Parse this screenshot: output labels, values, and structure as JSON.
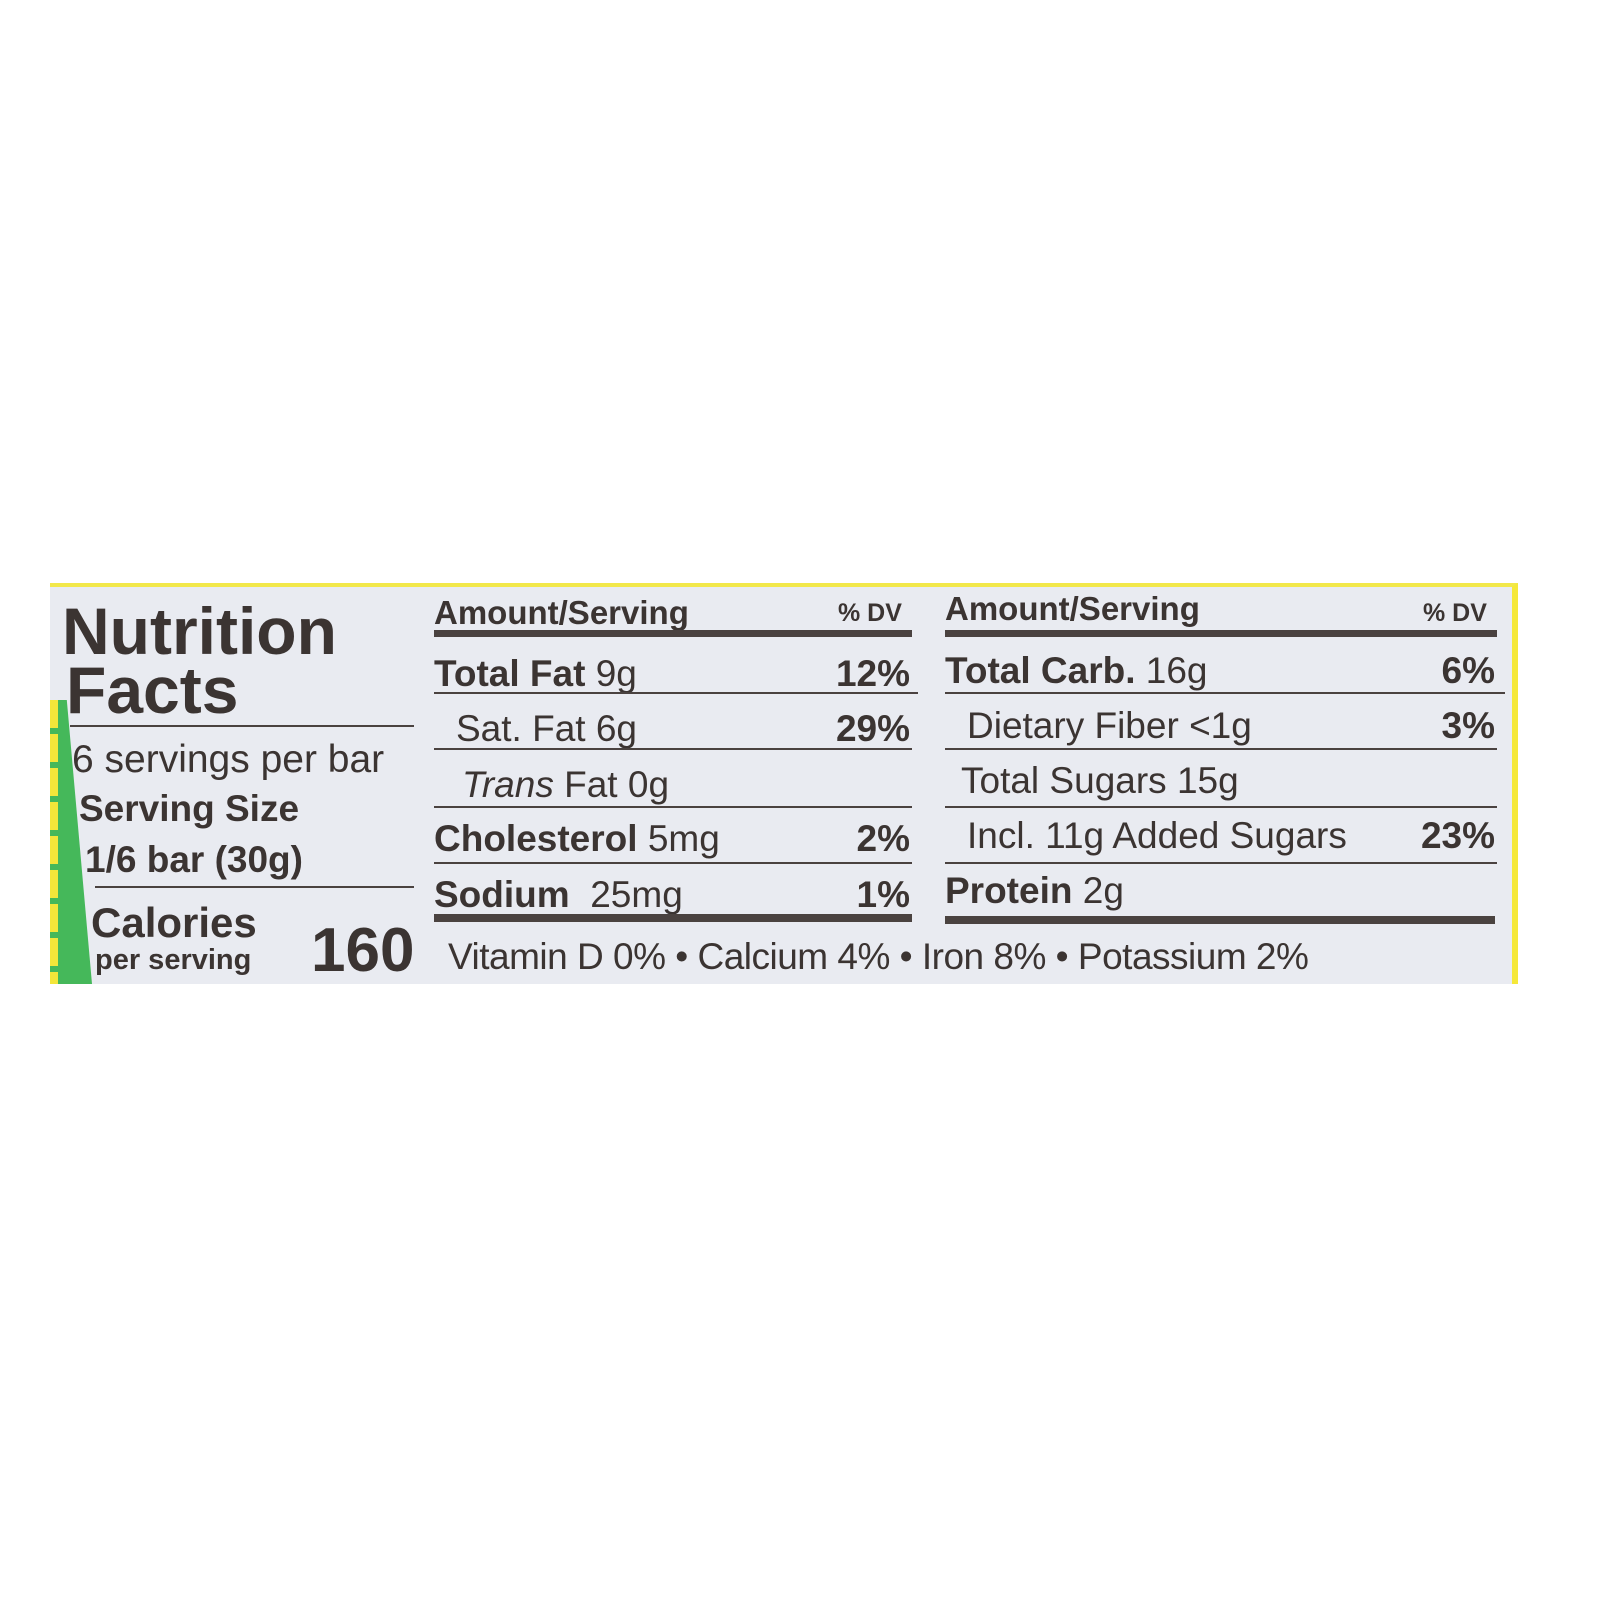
{
  "label": {
    "title_line1": "Nutrition",
    "title_line2": "Facts",
    "servings_per_container": "6 servings per bar",
    "serving_size_label": "Serving Size",
    "serving_size_value": "1/6 bar (30g)",
    "calories_label": "Calories",
    "calories_sub": "per serving",
    "calories_value": "160",
    "left_column": {
      "header": "Amount/Serving",
      "dv_header": "% DV",
      "rows": [
        {
          "name": "Total Fat",
          "amount": "9g",
          "dv": "12%"
        },
        {
          "name": "Sat. Fat",
          "amount": "6g",
          "dv": "29%"
        },
        {
          "name": "Trans",
          "amount": "Fat 0g",
          "dv": ""
        },
        {
          "name": "Cholesterol",
          "amount": "5mg",
          "dv": "2%"
        },
        {
          "name": "Sodium",
          "amount": "25mg",
          "dv": "1%"
        }
      ]
    },
    "right_column": {
      "header": "Amount/Serving",
      "dv_header": "% DV",
      "rows": [
        {
          "name": "Total Carb.",
          "amount": "16g",
          "dv": "6%"
        },
        {
          "name": "Dietary Fiber",
          "amount": "<1g",
          "dv": "3%"
        },
        {
          "name": "Total Sugars",
          "amount": "15g",
          "dv": ""
        },
        {
          "name": "Incl. 11g Added Sugars",
          "amount": "",
          "dv": "23%"
        },
        {
          "name": "Protein",
          "amount": "2g",
          "dv": ""
        }
      ]
    },
    "micronutrients": "Vitamin D 0% • Calcium 4% • Iron 8% • Potassium 2%"
  },
  "colors": {
    "text": "#3b3432",
    "panel": "#e9ebf1",
    "green": "#45b85a",
    "yellow": "#f3e63a"
  }
}
